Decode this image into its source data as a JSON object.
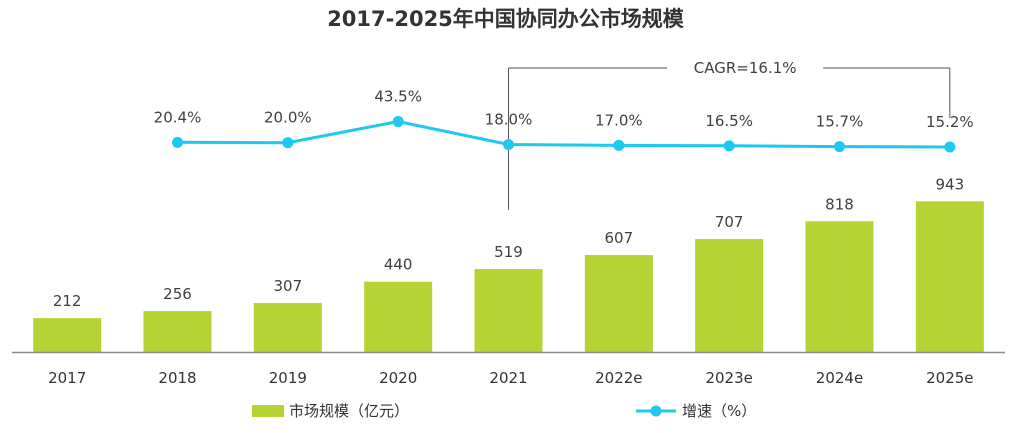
{
  "chart_data": {
    "type": "bar",
    "title": "2017-2025年中国协同办公市场规模",
    "categories": [
      "2017",
      "2018",
      "2019",
      "2020",
      "2021",
      "2022e",
      "2023e",
      "2024e",
      "2025e"
    ],
    "series": [
      {
        "name": "市场规模（亿元）",
        "type": "bar",
        "values": [
          212,
          256,
          307,
          440,
          519,
          607,
          707,
          818,
          943
        ],
        "labels": [
          "212",
          "256",
          "307",
          "440",
          "519",
          "607",
          "707",
          "818",
          "943"
        ],
        "color": "#b5d334"
      },
      {
        "name": "增速（%）",
        "type": "line",
        "values": [
          null,
          20.4,
          20.0,
          43.5,
          18.0,
          17.0,
          16.5,
          15.7,
          15.2
        ],
        "labels": [
          "",
          "20.4%",
          "20.0%",
          "43.5%",
          "18.0%",
          "17.0%",
          "16.5%",
          "15.7%",
          "15.2%"
        ],
        "color": "#1ec8f0"
      }
    ],
    "annotation": {
      "text": "CAGR=16.1%",
      "from_category": "2021",
      "to_category": "2025e"
    },
    "xlabel": "",
    "ylabel": "",
    "grid": false,
    "legend": "bottom"
  }
}
